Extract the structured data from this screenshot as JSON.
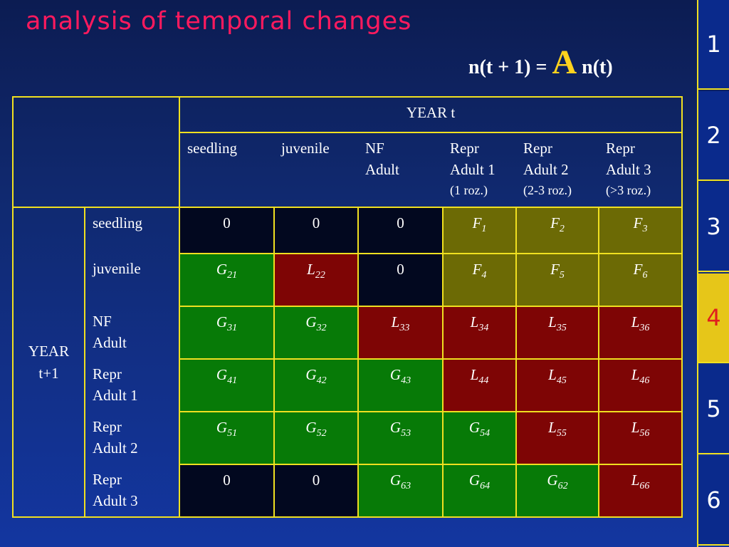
{
  "title": "analysis of temporal changes",
  "formula": {
    "left": "n(t + 1) =",
    "matrix": "A",
    "right": "n(t)"
  },
  "colors": {
    "title": "#ff1a5e",
    "zero": "#02081f",
    "growth": "#077a07",
    "stasis": "#7e0505",
    "fecundity": "#6c6a05",
    "grid": "#f0e020",
    "nav_active": "#e6c619"
  },
  "table": {
    "year_t": "YEAR t",
    "year_t1_line1": "YEAR",
    "year_t1_line2": "t+1",
    "columns": [
      {
        "l1": "seedling",
        "l2": "",
        "l3": ""
      },
      {
        "l1": "juvenile",
        "l2": "",
        "l3": ""
      },
      {
        "l1": "NF",
        "l2": "Adult",
        "l3": ""
      },
      {
        "l1": "Repr",
        "l2": "Adult 1",
        "l3": "(1 roz.)"
      },
      {
        "l1": "Repr",
        "l2": "Adult 2",
        "l3": "(2-3 roz.)"
      },
      {
        "l1": "Repr",
        "l2": "Adult 3",
        "l3": "(>3 roz.)"
      }
    ],
    "rows": [
      {
        "l1": "seedling",
        "l2": "",
        "cells": [
          {
            "v": "0",
            "s": ""
          },
          {
            "v": "0",
            "s": ""
          },
          {
            "v": "0",
            "s": ""
          },
          {
            "v": "F",
            "s": "1"
          },
          {
            "v": "F",
            "s": "2"
          },
          {
            "v": "F",
            "s": "3"
          }
        ]
      },
      {
        "l1": "juvenile",
        "l2": "",
        "cells": [
          {
            "v": "G",
            "s": "21"
          },
          {
            "v": "L",
            "s": "22"
          },
          {
            "v": "0",
            "s": ""
          },
          {
            "v": "F",
            "s": "4"
          },
          {
            "v": "F",
            "s": "5"
          },
          {
            "v": "F",
            "s": "6"
          }
        ]
      },
      {
        "l1": "NF",
        "l2": "Adult",
        "cells": [
          {
            "v": "G",
            "s": "31"
          },
          {
            "v": "G",
            "s": "32"
          },
          {
            "v": "L",
            "s": "33"
          },
          {
            "v": "L",
            "s": "34"
          },
          {
            "v": "L",
            "s": "35"
          },
          {
            "v": "L",
            "s": "36"
          }
        ]
      },
      {
        "l1": "Repr",
        "l2": "Adult 1",
        "cells": [
          {
            "v": "G",
            "s": "41"
          },
          {
            "v": "G",
            "s": "42"
          },
          {
            "v": "G",
            "s": "43"
          },
          {
            "v": "L",
            "s": "44"
          },
          {
            "v": "L",
            "s": "45"
          },
          {
            "v": "L",
            "s": "46"
          }
        ]
      },
      {
        "l1": "Repr",
        "l2": "Adult 2",
        "cells": [
          {
            "v": "G",
            "s": "51"
          },
          {
            "v": "G",
            "s": "52"
          },
          {
            "v": "G",
            "s": "53"
          },
          {
            "v": "G",
            "s": "54"
          },
          {
            "v": "L",
            "s": "55"
          },
          {
            "v": "L",
            "s": "56"
          }
        ]
      },
      {
        "l1": "Repr",
        "l2": "Adult 3",
        "cells": [
          {
            "v": "0",
            "s": ""
          },
          {
            "v": "0",
            "s": ""
          },
          {
            "v": "G",
            "s": "63"
          },
          {
            "v": "G",
            "s": "64"
          },
          {
            "v": "G",
            "s": "62"
          },
          {
            "v": "L",
            "s": "66"
          }
        ]
      }
    ]
  },
  "nav": [
    "1",
    "2",
    "3",
    "4",
    "5",
    "6"
  ],
  "nav_active": "4"
}
